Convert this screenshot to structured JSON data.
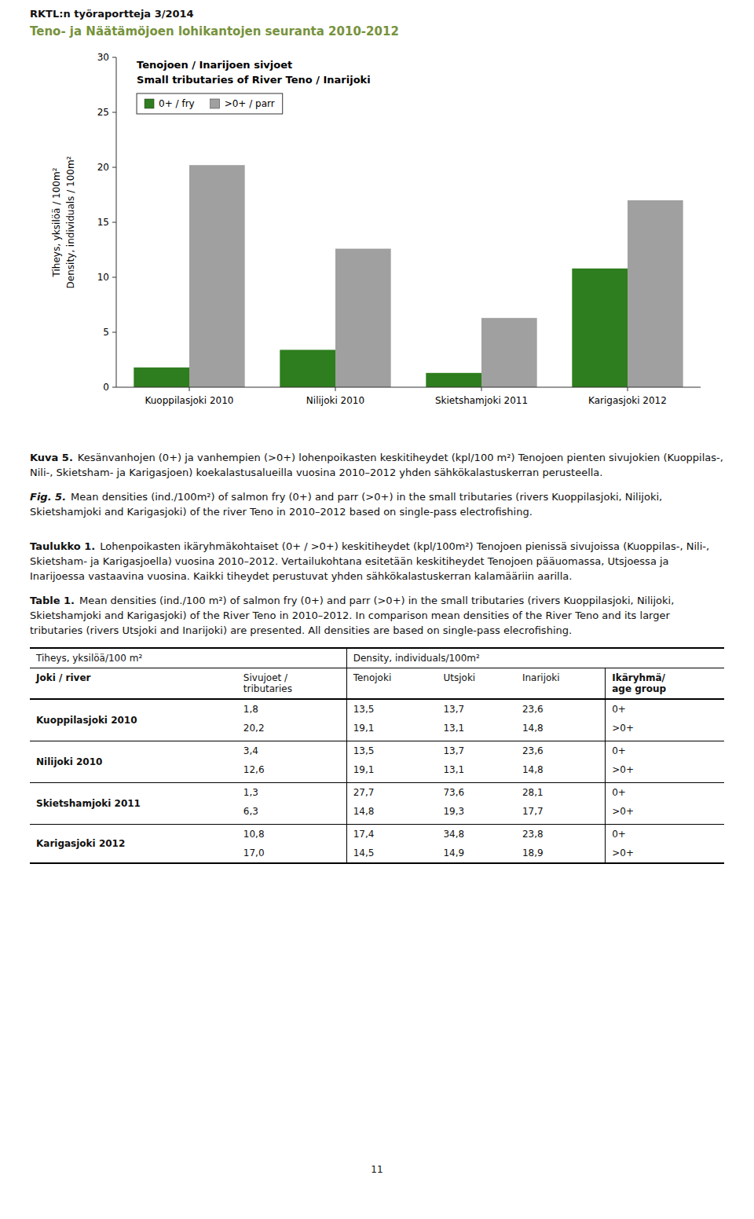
{
  "header": {
    "line1": "RKTL:n työraportteja 3/2014",
    "line2": "Teno- ja Näätämöjoen lohikantojen seuranta 2010-2012",
    "color": "#76923C"
  },
  "chart_data": {
    "type": "bar",
    "title": "Tenojoen / Inarijoen sivjoet",
    "subtitle": "Small tributaries of River Teno / Inarijoki",
    "categories": [
      "Kuoppilasjoki 2010",
      "Nilijoki 2010",
      "Skietshamjoki 2011",
      "Karigasjoki 2012"
    ],
    "series": [
      {
        "name": "0+ / fry",
        "color": "#2E7D1E",
        "values": [
          1.8,
          3.4,
          1.3,
          10.8
        ]
      },
      {
        "name": ">0+ / parr",
        "color": "#A0A0A0",
        "values": [
          20.2,
          12.6,
          6.3,
          17.0
        ]
      }
    ],
    "y_label": [
      "Tiheys, yksilöä / 100m²",
      "Density, individuals / 100m²"
    ],
    "ylim": [
      0,
      30
    ],
    "yticks": [
      0,
      5,
      10,
      15,
      20,
      25,
      30
    ],
    "legend": "upper left",
    "grid": false
  },
  "figure_caption_fi": {
    "label": "Kuva 5.",
    "text": "Kesänvanhojen (0+) ja vanhempien (>0+) lohenpoikasten keskitiheydet (kpl/100 m²) Tenojoen pienten sivujokien (Kuoppilas-, Nili-, Skietsham- ja Karigasjoen) koekalastusalueilla vuosina 2010–2012 yhden sähkökalastuskerran perusteella."
  },
  "figure_caption_en": {
    "label": "Fig. 5.",
    "text": "Mean densities (ind./100m²) of salmon fry (0+) and parr (>0+) in the small tributaries (rivers Kuoppilasjoki, Nilijoki, Skietshamjoki and Karigasjoki) of the river Teno in 2010–2012 based on single-pass electrofishing."
  },
  "table_caption_fi": {
    "label": "Taulukko 1.",
    "text": "Lohenpoikasten ikäryhmäkohtaiset (0+ / >0+) keskitiheydet (kpl/100m²) Tenojoen pienissä sivujoissa (Kuoppilas-, Nili-, Skietsham- ja Karigasjoella) vuosina 2010–2012. Vertailukohtana esitetään keskitiheydet Tenojoen pääuomassa, Utsjoessa ja Inarijoessa vastaavina vuosina. Kaikki tiheydet perustuvat yhden sähkökalastuskerran kalamääriin aarilla."
  },
  "table_caption_en": {
    "label": "Table 1.",
    "text": "Mean densities (ind./100 m²) of salmon fry (0+) and parr (>0+) in the small tributaries (rivers Kuoppilasjoki, Nilijoki, Skietshamjoki and Karigasjoki) of the River Teno in 2010–2012. In comparison mean densities of the River Teno and its larger tributaries (rivers Utsjoki and Inarijoki) are presented. All densities are based on single-pass elecrofishing."
  },
  "table": {
    "header_groups": [
      "Tiheys, yksilöä/100 m²",
      "Density, individuals/100m²"
    ],
    "columns": [
      "Joki / river",
      "Sivujoet /\ntributaries",
      "Tenojoki",
      "Utsjoki",
      "Inarijoki",
      "Ikäryhmä/\nage group"
    ],
    "rows": [
      {
        "river": "Kuoppilasjoki 2010",
        "values": [
          [
            "1,8",
            "13,5",
            "13,7",
            "23,6",
            "0+"
          ],
          [
            "20,2",
            "19,1",
            "13,1",
            "14,8",
            ">0+"
          ]
        ]
      },
      {
        "river": "Nilijoki 2010",
        "values": [
          [
            "3,4",
            "13,5",
            "13,7",
            "23,6",
            "0+"
          ],
          [
            "12,6",
            "19,1",
            "13,1",
            "14,8",
            ">0+"
          ]
        ]
      },
      {
        "river": "Skietshamjoki 2011",
        "values": [
          [
            "1,3",
            "27,7",
            "73,6",
            "28,1",
            "0+"
          ],
          [
            "6,3",
            "14,8",
            "19,3",
            "17,7",
            ">0+"
          ]
        ]
      },
      {
        "river": "Karigasjoki 2012",
        "values": [
          [
            "10,8",
            "17,4",
            "34,8",
            "23,8",
            "0+"
          ],
          [
            "17,0",
            "14,5",
            "14,9",
            "18,9",
            ">0+"
          ]
        ]
      }
    ]
  },
  "page_number": "11"
}
